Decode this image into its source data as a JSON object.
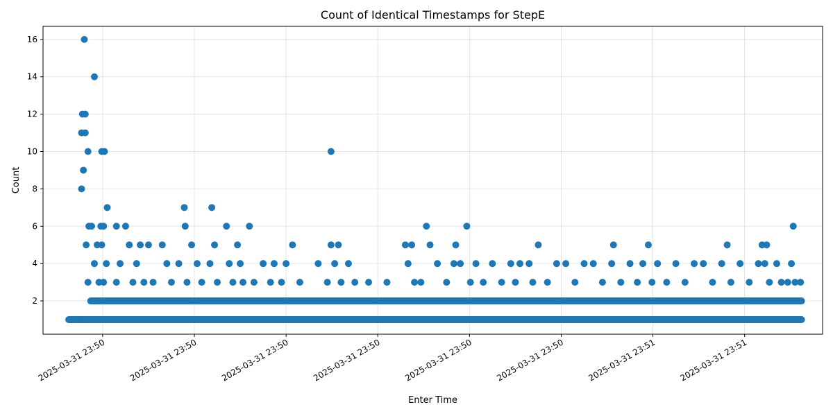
{
  "chart_data": {
    "type": "scatter",
    "title": "Count of Identical Timestamps for StepE",
    "xlabel": "Enter Time",
    "ylabel": "Count",
    "color": "#1f77b4",
    "grid": true,
    "x_range": [
      0,
      8.5
    ],
    "y_range": [
      0.22,
      16.7
    ],
    "y_ticks": [
      2,
      4,
      6,
      8,
      10,
      12,
      14,
      16
    ],
    "x_ticks": [
      {
        "value": 0.65,
        "label": "2025-03-31 23:50"
      },
      {
        "value": 1.65,
        "label": "2025-03-31 23:50"
      },
      {
        "value": 2.65,
        "label": "2025-03-31 23:50"
      },
      {
        "value": 3.65,
        "label": "2025-03-31 23:50"
      },
      {
        "value": 4.65,
        "label": "2025-03-31 23:50"
      },
      {
        "value": 5.65,
        "label": "2025-03-31 23:50"
      },
      {
        "value": 6.65,
        "label": "2025-03-31 23:51"
      },
      {
        "value": 7.65,
        "label": "2025-03-31 23:51"
      },
      {
        "value": 8.65,
        "label": "2025-03-31 23:51"
      }
    ],
    "baseline_bands": [
      {
        "y": 1,
        "x_start": 0.28,
        "x_end": 8.27
      },
      {
        "y": 2,
        "x_start": 0.52,
        "x_end": 8.27
      }
    ],
    "points": [
      {
        "x": 0.4,
        "y": 1
      },
      {
        "x": 0.42,
        "y": 8
      },
      {
        "x": 0.42,
        "y": 11
      },
      {
        "x": 0.43,
        "y": 12
      },
      {
        "x": 0.44,
        "y": 9
      },
      {
        "x": 0.45,
        "y": 16
      },
      {
        "x": 0.46,
        "y": 12
      },
      {
        "x": 0.46,
        "y": 11
      },
      {
        "x": 0.47,
        "y": 5
      },
      {
        "x": 0.49,
        "y": 10
      },
      {
        "x": 0.49,
        "y": 3
      },
      {
        "x": 0.5,
        "y": 6
      },
      {
        "x": 0.53,
        "y": 6
      },
      {
        "x": 0.56,
        "y": 14
      },
      {
        "x": 0.56,
        "y": 4
      },
      {
        "x": 0.59,
        "y": 5
      },
      {
        "x": 0.61,
        "y": 3
      },
      {
        "x": 0.63,
        "y": 6
      },
      {
        "x": 0.64,
        "y": 10
      },
      {
        "x": 0.64,
        "y": 5
      },
      {
        "x": 0.66,
        "y": 6
      },
      {
        "x": 0.66,
        "y": 3
      },
      {
        "x": 0.67,
        "y": 10
      },
      {
        "x": 0.69,
        "y": 4
      },
      {
        "x": 0.7,
        "y": 7
      },
      {
        "x": 0.8,
        "y": 6
      },
      {
        "x": 0.8,
        "y": 3
      },
      {
        "x": 0.84,
        "y": 4
      },
      {
        "x": 0.9,
        "y": 6
      },
      {
        "x": 0.94,
        "y": 5
      },
      {
        "x": 0.98,
        "y": 3
      },
      {
        "x": 1.02,
        "y": 4
      },
      {
        "x": 1.06,
        "y": 5
      },
      {
        "x": 1.1,
        "y": 3
      },
      {
        "x": 1.15,
        "y": 5
      },
      {
        "x": 1.2,
        "y": 3
      },
      {
        "x": 1.3,
        "y": 5
      },
      {
        "x": 1.35,
        "y": 4
      },
      {
        "x": 1.4,
        "y": 3
      },
      {
        "x": 1.48,
        "y": 4
      },
      {
        "x": 1.54,
        "y": 7
      },
      {
        "x": 1.55,
        "y": 6
      },
      {
        "x": 1.57,
        "y": 3
      },
      {
        "x": 1.62,
        "y": 5
      },
      {
        "x": 1.68,
        "y": 4
      },
      {
        "x": 1.73,
        "y": 3
      },
      {
        "x": 1.82,
        "y": 4
      },
      {
        "x": 1.84,
        "y": 7
      },
      {
        "x": 1.87,
        "y": 5
      },
      {
        "x": 1.9,
        "y": 3
      },
      {
        "x": 2.0,
        "y": 6
      },
      {
        "x": 2.03,
        "y": 4
      },
      {
        "x": 2.07,
        "y": 3
      },
      {
        "x": 2.12,
        "y": 5
      },
      {
        "x": 2.15,
        "y": 4
      },
      {
        "x": 2.18,
        "y": 3
      },
      {
        "x": 2.25,
        "y": 6
      },
      {
        "x": 2.3,
        "y": 3
      },
      {
        "x": 2.4,
        "y": 4
      },
      {
        "x": 2.48,
        "y": 3
      },
      {
        "x": 2.52,
        "y": 4
      },
      {
        "x": 2.6,
        "y": 3
      },
      {
        "x": 2.65,
        "y": 4
      },
      {
        "x": 2.72,
        "y": 5
      },
      {
        "x": 2.8,
        "y": 3
      },
      {
        "x": 3.0,
        "y": 4
      },
      {
        "x": 3.1,
        "y": 3
      },
      {
        "x": 3.14,
        "y": 10
      },
      {
        "x": 3.14,
        "y": 5
      },
      {
        "x": 3.18,
        "y": 4
      },
      {
        "x": 3.22,
        "y": 5
      },
      {
        "x": 3.25,
        "y": 3
      },
      {
        "x": 3.33,
        "y": 4
      },
      {
        "x": 3.4,
        "y": 3
      },
      {
        "x": 3.55,
        "y": 3
      },
      {
        "x": 3.75,
        "y": 3
      },
      {
        "x": 3.95,
        "y": 5
      },
      {
        "x": 3.98,
        "y": 4
      },
      {
        "x": 4.02,
        "y": 5
      },
      {
        "x": 4.05,
        "y": 3
      },
      {
        "x": 4.12,
        "y": 3
      },
      {
        "x": 4.18,
        "y": 6
      },
      {
        "x": 4.22,
        "y": 5
      },
      {
        "x": 4.3,
        "y": 4
      },
      {
        "x": 4.4,
        "y": 3
      },
      {
        "x": 4.48,
        "y": 4
      },
      {
        "x": 4.5,
        "y": 5
      },
      {
        "x": 4.55,
        "y": 4
      },
      {
        "x": 4.62,
        "y": 6
      },
      {
        "x": 4.66,
        "y": 3
      },
      {
        "x": 4.72,
        "y": 4
      },
      {
        "x": 4.8,
        "y": 3
      },
      {
        "x": 4.9,
        "y": 4
      },
      {
        "x": 5.0,
        "y": 3
      },
      {
        "x": 5.1,
        "y": 4
      },
      {
        "x": 5.15,
        "y": 3
      },
      {
        "x": 5.2,
        "y": 4
      },
      {
        "x": 5.3,
        "y": 4
      },
      {
        "x": 5.34,
        "y": 3
      },
      {
        "x": 5.4,
        "y": 5
      },
      {
        "x": 5.5,
        "y": 3
      },
      {
        "x": 5.6,
        "y": 4
      },
      {
        "x": 5.7,
        "y": 4
      },
      {
        "x": 5.8,
        "y": 3
      },
      {
        "x": 5.9,
        "y": 4
      },
      {
        "x": 6.0,
        "y": 4
      },
      {
        "x": 6.1,
        "y": 3
      },
      {
        "x": 6.2,
        "y": 4
      },
      {
        "x": 6.22,
        "y": 5
      },
      {
        "x": 6.3,
        "y": 3
      },
      {
        "x": 6.4,
        "y": 4
      },
      {
        "x": 6.48,
        "y": 3
      },
      {
        "x": 6.54,
        "y": 4
      },
      {
        "x": 6.6,
        "y": 5
      },
      {
        "x": 6.64,
        "y": 3
      },
      {
        "x": 6.7,
        "y": 4
      },
      {
        "x": 6.8,
        "y": 3
      },
      {
        "x": 6.9,
        "y": 4
      },
      {
        "x": 7.0,
        "y": 3
      },
      {
        "x": 7.1,
        "y": 4
      },
      {
        "x": 7.2,
        "y": 4
      },
      {
        "x": 7.3,
        "y": 3
      },
      {
        "x": 7.4,
        "y": 4
      },
      {
        "x": 7.46,
        "y": 5
      },
      {
        "x": 7.5,
        "y": 3
      },
      {
        "x": 7.6,
        "y": 4
      },
      {
        "x": 7.7,
        "y": 3
      },
      {
        "x": 7.8,
        "y": 4
      },
      {
        "x": 7.84,
        "y": 5
      },
      {
        "x": 7.87,
        "y": 4
      },
      {
        "x": 7.89,
        "y": 5
      },
      {
        "x": 7.92,
        "y": 3
      },
      {
        "x": 8.0,
        "y": 4
      },
      {
        "x": 8.05,
        "y": 3
      },
      {
        "x": 8.12,
        "y": 3
      },
      {
        "x": 8.16,
        "y": 4
      },
      {
        "x": 8.18,
        "y": 6
      },
      {
        "x": 8.2,
        "y": 3
      },
      {
        "x": 8.26,
        "y": 3
      }
    ]
  }
}
